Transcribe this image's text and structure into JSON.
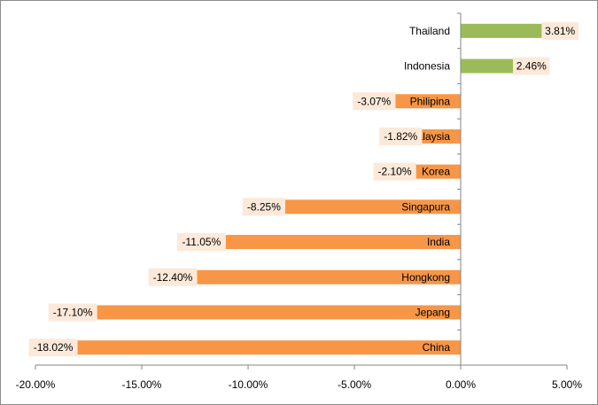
{
  "chart_data": {
    "type": "bar",
    "orientation": "horizontal",
    "categories": [
      "Thailand",
      "Indonesia",
      "Philipina",
      "Malaysia",
      "Korea",
      "Singapura",
      "India",
      "Hongkong",
      "Jepang",
      "China"
    ],
    "values": [
      3.81,
      2.46,
      -3.07,
      -1.82,
      -2.1,
      -8.25,
      -11.05,
      -12.4,
      -17.1,
      -18.02
    ],
    "value_labels": [
      "3.81%",
      "2.46%",
      "-3.07%",
      "-1.82%",
      "-2.10%",
      "-8.25%",
      "-11.05%",
      "-12.40%",
      "-17.10%",
      "-18.02%"
    ],
    "xlim": [
      -20,
      5
    ],
    "x_ticks": [
      -20,
      -15,
      -10,
      -5,
      0,
      5
    ],
    "x_tick_labels": [
      "-20.00%",
      "-15.00%",
      "-10.00%",
      "-5.00%",
      "0.00%",
      "5.00%"
    ],
    "grid": false,
    "legend": "none",
    "colors": {
      "positive": "#9bbb59",
      "negative": "#f79646",
      "label_background": "#fde9d9",
      "axis": "#868686"
    }
  }
}
